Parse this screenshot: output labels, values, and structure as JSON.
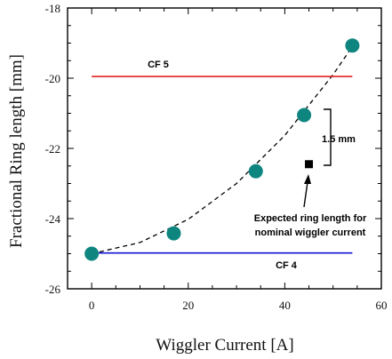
{
  "chart_data": {
    "type": "scatter",
    "xlabel": "Wiggler Current [A]",
    "ylabel": "Fractional Ring length [mm]",
    "xlim": [
      -5,
      60
    ],
    "ylim": [
      -26,
      -18
    ],
    "x_ticks": [
      0,
      20,
      40,
      60
    ],
    "y_ticks": [
      -26,
      -24,
      -22,
      -20,
      -18
    ],
    "grid": false,
    "series": [
      {
        "type": "scatter",
        "color": "#0f8580",
        "x": [
          0,
          17,
          34,
          44,
          54
        ],
        "y": [
          -25.0,
          -24.42,
          -22.65,
          -21.05,
          -19.07
        ]
      },
      {
        "type": "line",
        "style": "dashed",
        "fit": "quadratic",
        "color": "#000000",
        "x": [
          0,
          10,
          20,
          30,
          40,
          50,
          55
        ],
        "y": [
          -25.0,
          -24.68,
          -24.02,
          -23.0,
          -21.63,
          -19.9,
          -18.9
        ]
      },
      {
        "type": "hline",
        "name": "CF 5",
        "color": "#e32222",
        "y": -19.95,
        "x_range": [
          0,
          54
        ]
      },
      {
        "type": "hline",
        "name": "CF 4",
        "color": "#1414d6",
        "y": -24.98,
        "x_range": [
          0,
          54
        ]
      },
      {
        "type": "marker",
        "shape": "square",
        "color": "#000000",
        "x": [
          45
        ],
        "y": [
          -22.45
        ]
      }
    ],
    "annotations": {
      "cf5": "CF 5",
      "cf4": "CF 4",
      "span": "1.5 mm",
      "expected_line1": "Expected ring length for",
      "expected_line2": "nominal wiggler current"
    }
  }
}
